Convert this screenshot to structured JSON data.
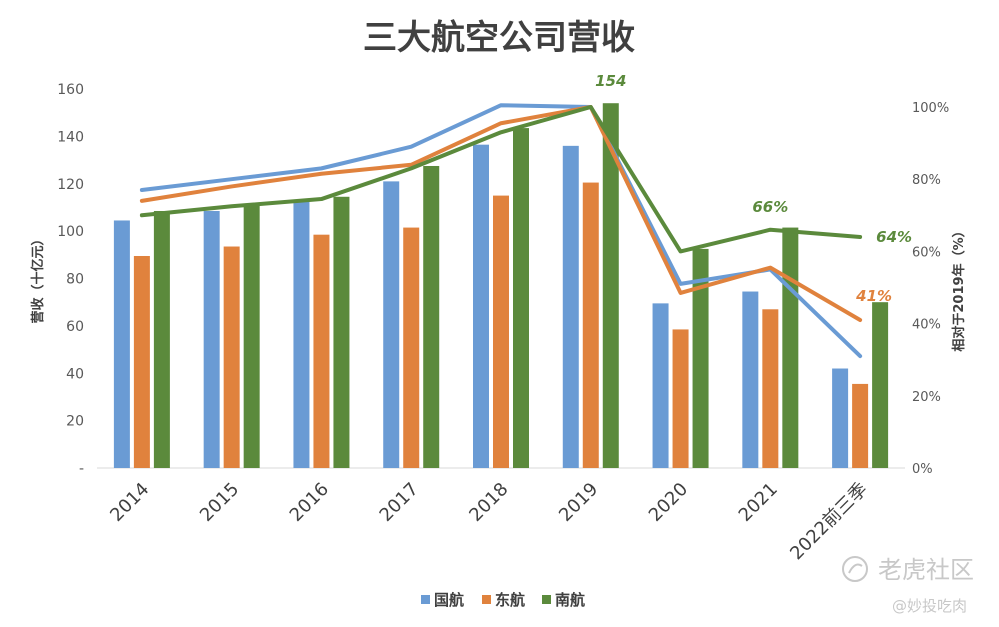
{
  "chart_data": {
    "type": "bar",
    "title": "三大航空公司营收",
    "categories": [
      "2014",
      "2015",
      "2016",
      "2017",
      "2018",
      "2019",
      "2020",
      "2021",
      "2022前三季"
    ],
    "ylabel": "营收（十亿元）",
    "y2label": "相对于2019年（%）",
    "ylim": [
      0,
      160
    ],
    "y2lim": [
      0,
      105
    ],
    "yticks": [
      "-",
      "20",
      "40",
      "60",
      "80",
      "100",
      "120",
      "140",
      "160"
    ],
    "y2ticks": [
      "0%",
      "20%",
      "40%",
      "60%",
      "80%",
      "100%"
    ],
    "legend_position": "bottom",
    "series": [
      {
        "name": "国航",
        "color": "#6a9bd4",
        "values": [
          104.5,
          108.5,
          112.5,
          121.0,
          136.5,
          136.0,
          69.5,
          74.5,
          42.0
        ]
      },
      {
        "name": "东航",
        "color": "#e0823d",
        "values": [
          89.5,
          93.5,
          98.5,
          101.5,
          115.0,
          120.5,
          58.5,
          67.0,
          35.5
        ]
      },
      {
        "name": "南航",
        "color": "#5b8a3c",
        "values": [
          108.5,
          111.5,
          114.5,
          127.5,
          143.5,
          154.0,
          92.5,
          101.5,
          70.0
        ]
      }
    ],
    "lines": [
      {
        "name": "国航",
        "color": "#6a9bd4",
        "values": [
          77,
          80,
          83,
          89,
          100.5,
          100,
          51,
          55,
          31
        ]
      },
      {
        "name": "东航",
        "color": "#e0823d",
        "values": [
          74,
          78,
          81.5,
          84,
          95.5,
          100,
          48.5,
          55.5,
          41
        ]
      },
      {
        "name": "南航",
        "color": "#5b8a3c",
        "values": [
          70,
          72.5,
          74.5,
          83,
          93,
          100,
          60,
          66,
          64
        ]
      }
    ],
    "annotations": [
      {
        "text": "154",
        "color": "#5b8a3c"
      },
      {
        "text": "66%",
        "color": "#5b8a3c"
      },
      {
        "text": "64%",
        "color": "#5b8a3c"
      },
      {
        "text": "41%",
        "color": "#e0823d"
      }
    ]
  },
  "watermark": {
    "main": "老虎社区",
    "sub": "@妙投吃肉",
    "icon": "tiger-community-logo-icon"
  }
}
